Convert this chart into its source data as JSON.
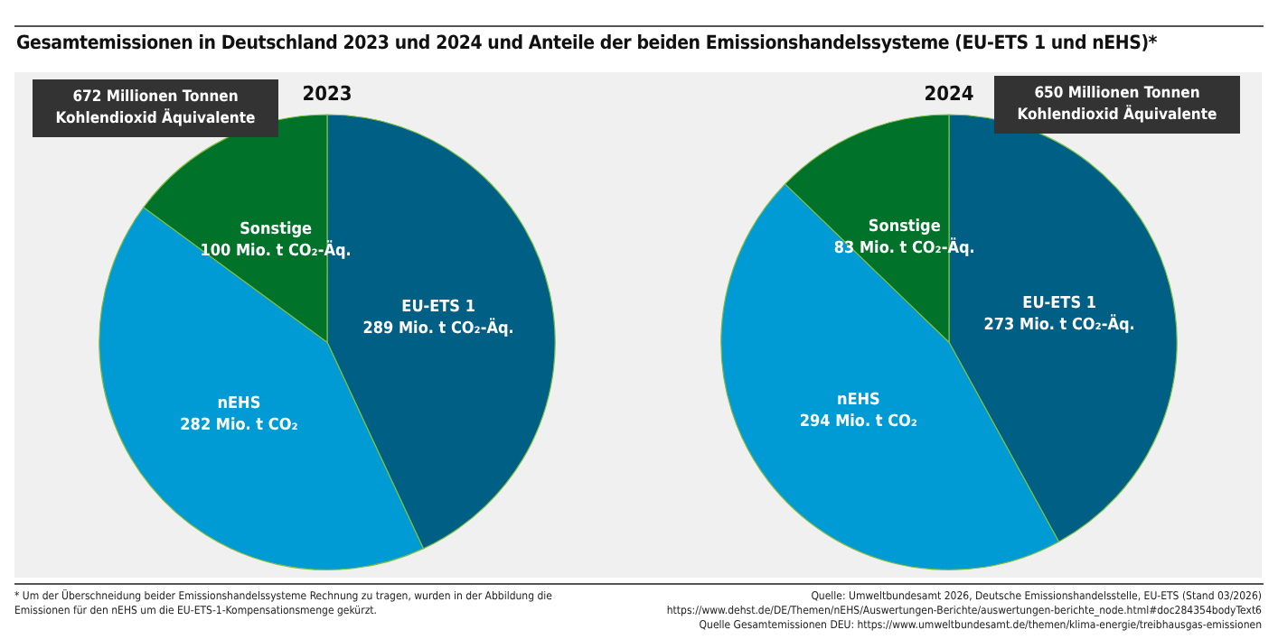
{
  "chart_data": [
    {
      "type": "pie",
      "title": "Gesamtemissionen in Deutschland 2023 und 2024 und Anteile der beiden Emissionshandelssysteme (EU-ETS 1 und nEHS)*",
      "subtitle": "2023",
      "categories": [
        "EU-ETS 1",
        "nEHS",
        "Sonstige"
      ],
      "values": [
        289,
        282,
        100
      ],
      "value_labels": [
        "289 Mio. t CO₂-Äq.",
        "282 Mio. t CO₂",
        "100 Mio. t CO₂-Äq."
      ],
      "colors": [
        "#005f85",
        "#009bd4",
        "#00722a"
      ],
      "legend": false,
      "annotations": [
        "672 Millionen Tonnen Kohlendioxid Äquivalente",
        "* Um der Überschneidung beider Emissionshandelssysteme Rechnung zu tragen, wurden in der Abbildung die Emissionen für den nEHS um die EU-ETS-1-Kompensationsmenge gekürzt."
      ]
    },
    {
      "type": "pie",
      "title": "2024",
      "categories": [
        "EU-ETS 1",
        "nEHS",
        "Sonstige"
      ],
      "values": [
        273,
        294,
        83
      ],
      "value_labels": [
        "273 Mio. t CO₂-Äq.",
        "294 Mio. t CO₂",
        "83 Mio. t CO₂-Äq."
      ],
      "colors": [
        "#005f85",
        "#009bd4",
        "#00722a"
      ],
      "legend": false,
      "annotations": [
        "650 Millionen Tonnen Kohlendioxid Äquivalente",
        "Quelle: Umweltbundesamt 2026, Deutsche Emissionshandelsstelle, EU-ETS (Stand 03/2026)",
        "https://www.dehst.de/DE/Themen/nEHS/Auswertungen-Berichte/auswertungen-berichte_node.html#doc284354bodyText6",
        "Quelle Gesamtemissionen DEU: https://www.umweltbundesamt.de/themen/klima-energie/treibhausgas-emissionen"
      ]
    }
  ]
}
